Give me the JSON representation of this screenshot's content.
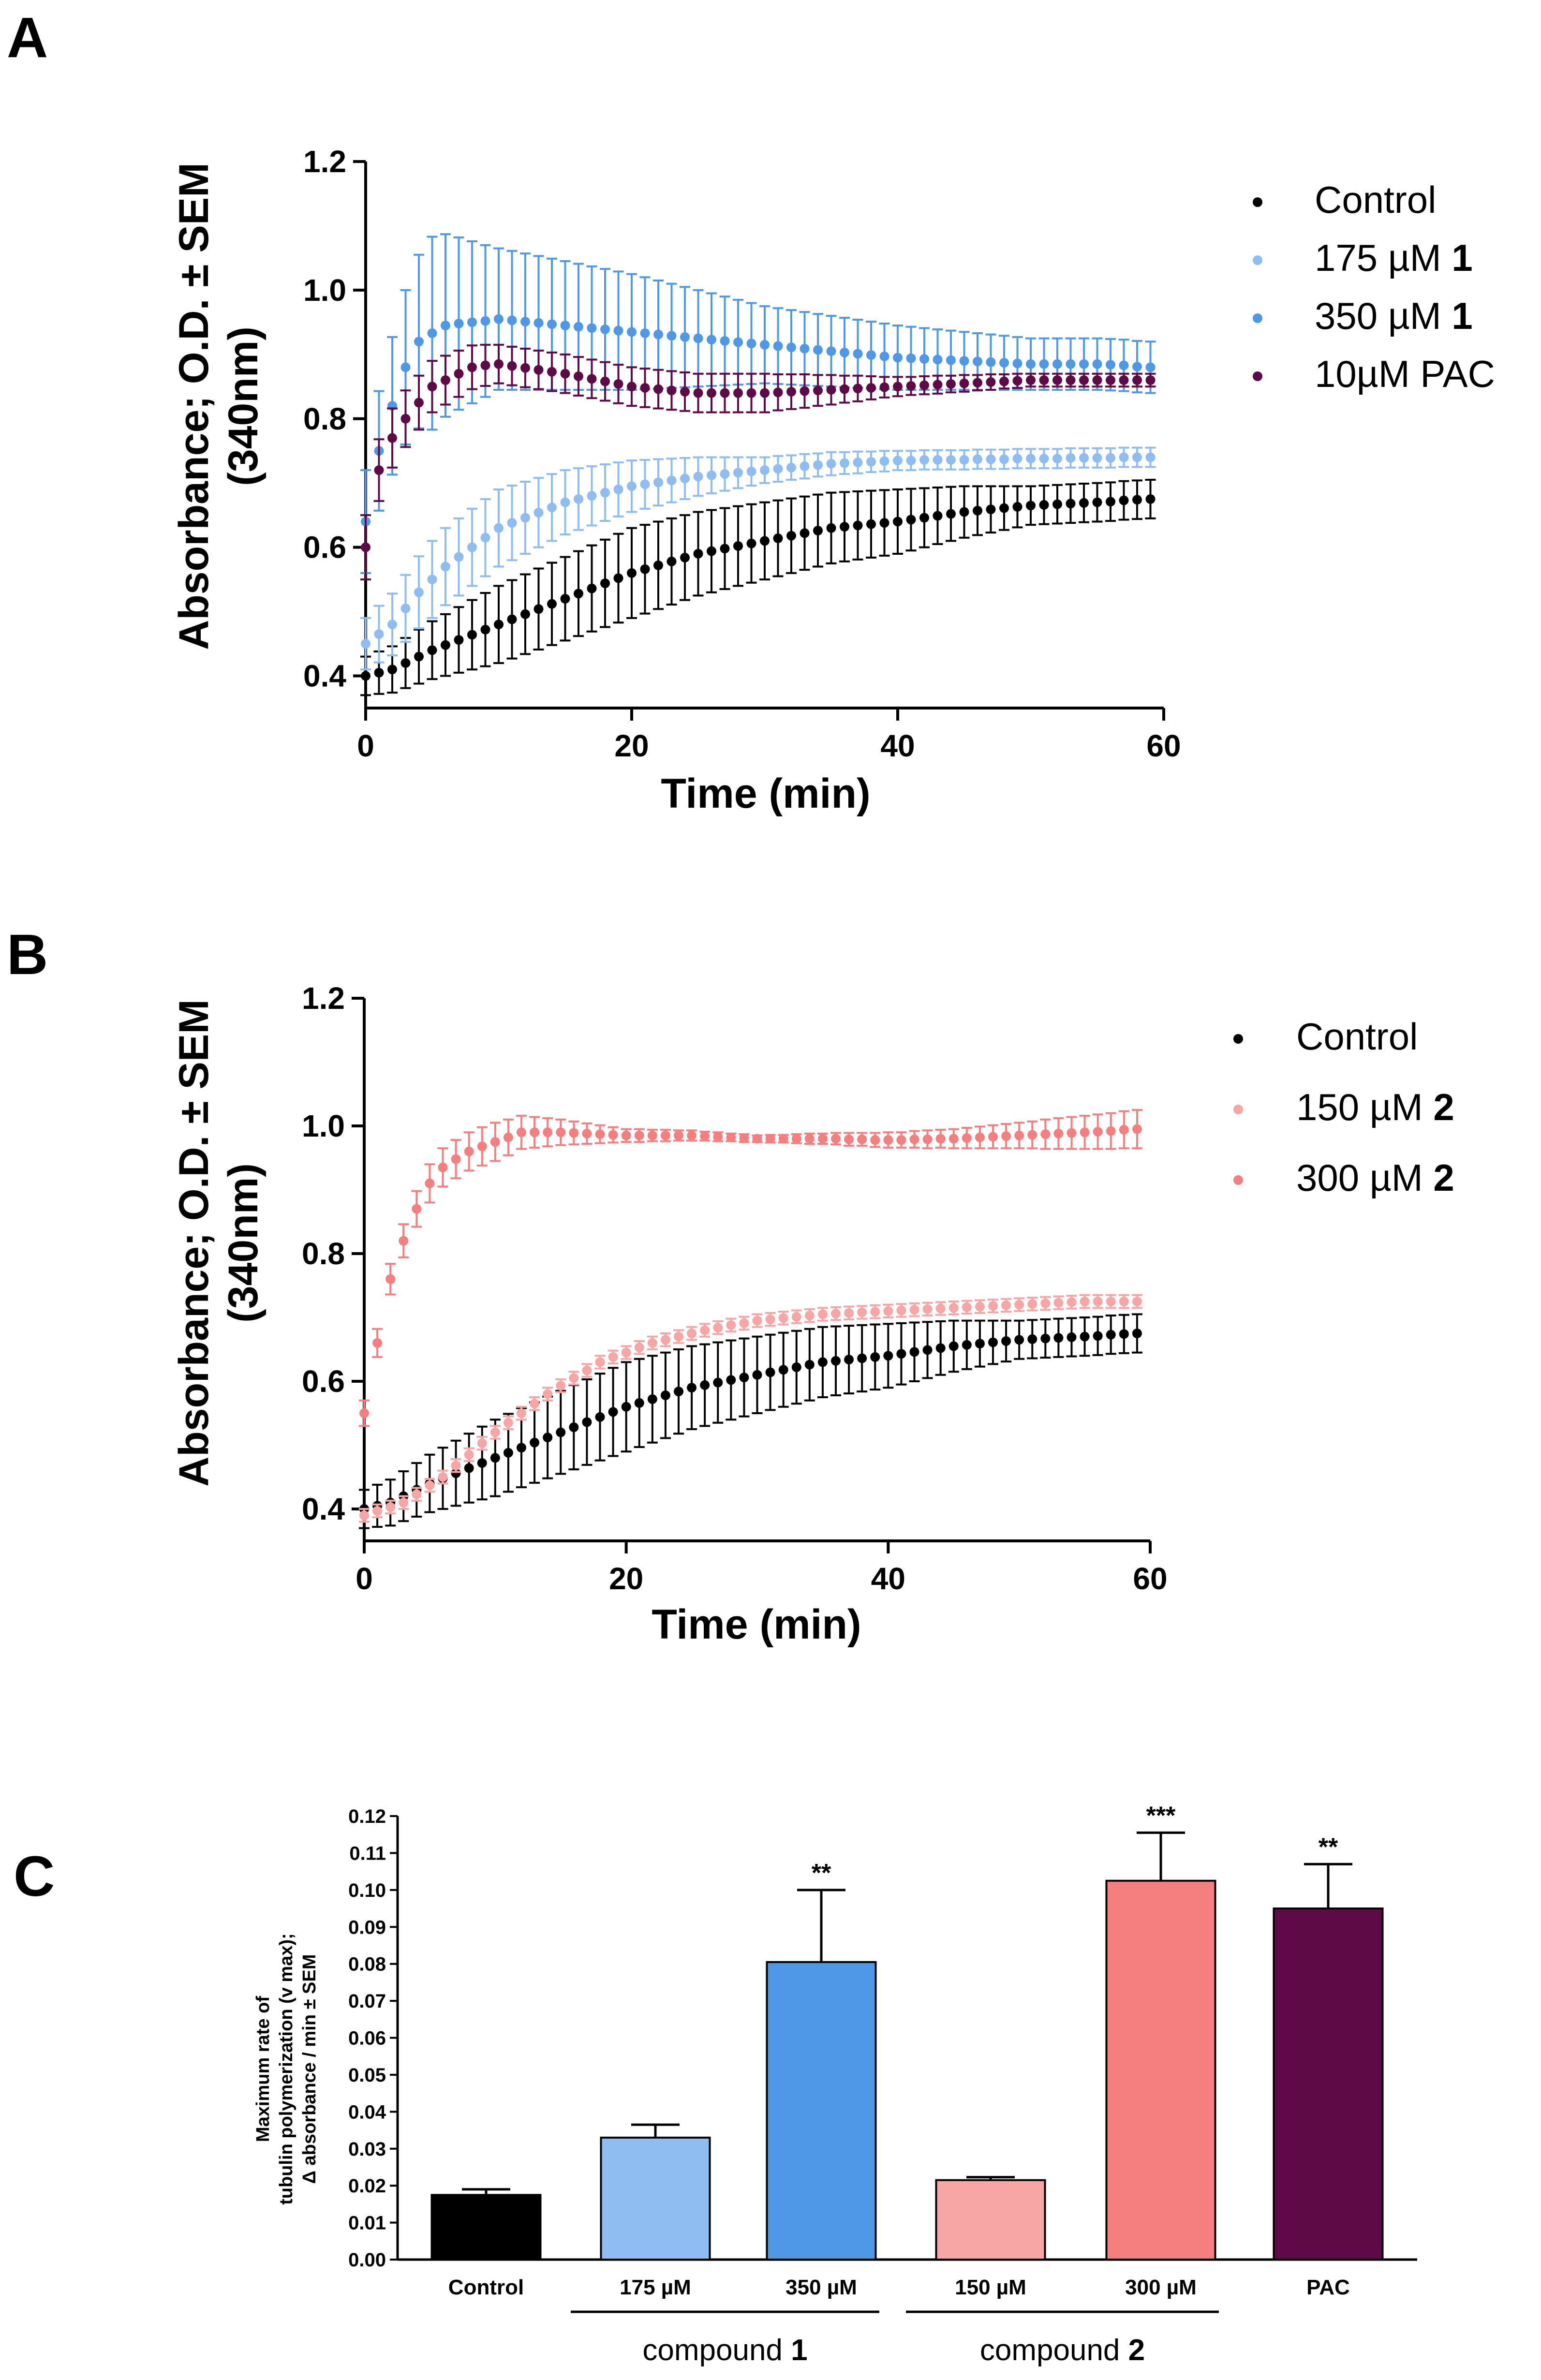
{
  "chart_data": [
    {
      "panel_label": "A",
      "type": "scatter",
      "title": "",
      "xlabel": "Time (min)",
      "ylabel_line1": "Absorbance; O.D. ± SEM",
      "ylabel_line2": "(340nm)",
      "xlim": [
        0,
        60
      ],
      "ylim": [
        0.35,
        1.2
      ],
      "xticks": [
        0,
        20,
        40,
        60
      ],
      "xtick_labels": [
        "0",
        "20",
        "40",
        "60"
      ],
      "yticks": [
        0.4,
        0.6,
        0.8,
        1.0,
        1.2
      ],
      "ytick_labels": [
        "0.4",
        "0.6",
        "0.8",
        "1.0",
        "1.2"
      ],
      "grid": false,
      "legend_position": "top-right",
      "time": {
        "start": 0,
        "end": 59,
        "step": 1
      },
      "series": [
        {
          "name": "Control",
          "legend_text": "Control",
          "legend_bold": "",
          "color": "#000000",
          "anchors": [
            [
              0,
              0.4
            ],
            [
              2,
              0.41
            ],
            [
              5,
              0.44
            ],
            [
              10,
              0.48
            ],
            [
              15,
              0.52
            ],
            [
              20,
              0.56
            ],
            [
              25,
              0.59
            ],
            [
              30,
              0.61
            ],
            [
              35,
              0.63
            ],
            [
              40,
              0.64
            ],
            [
              45,
              0.655
            ],
            [
              50,
              0.665
            ],
            [
              55,
              0.67
            ],
            [
              59,
              0.675
            ]
          ],
          "sem_anchors": [
            [
              0,
              0.03
            ],
            [
              10,
              0.06
            ],
            [
              20,
              0.07
            ],
            [
              30,
              0.06
            ],
            [
              40,
              0.05
            ],
            [
              50,
              0.03
            ],
            [
              59,
              0.03
            ]
          ]
        },
        {
          "name": "175 µM 1",
          "legend_text": "175 µM ",
          "legend_bold": "1",
          "color": "#8fbdf2",
          "anchors": [
            [
              0,
              0.45
            ],
            [
              2,
              0.48
            ],
            [
              4,
              0.53
            ],
            [
              6,
              0.57
            ],
            [
              10,
              0.63
            ],
            [
              15,
              0.67
            ],
            [
              20,
              0.695
            ],
            [
              25,
              0.71
            ],
            [
              30,
              0.72
            ],
            [
              35,
              0.73
            ],
            [
              40,
              0.735
            ],
            [
              50,
              0.738
            ],
            [
              59,
              0.74
            ]
          ],
          "sem_anchors": [
            [
              0,
              0.04
            ],
            [
              5,
              0.06
            ],
            [
              10,
              0.06
            ],
            [
              20,
              0.04
            ],
            [
              30,
              0.02
            ],
            [
              40,
              0.015
            ],
            [
              59,
              0.015
            ]
          ]
        },
        {
          "name": "350 µM 1",
          "legend_text": "350 µM ",
          "legend_bold": "1",
          "color": "#4f98e8",
          "anchors": [
            [
              0,
              0.64
            ],
            [
              1,
              0.75
            ],
            [
              2,
              0.82
            ],
            [
              3,
              0.88
            ],
            [
              4,
              0.92
            ],
            [
              6,
              0.945
            ],
            [
              10,
              0.955
            ],
            [
              15,
              0.945
            ],
            [
              20,
              0.935
            ],
            [
              25,
              0.925
            ],
            [
              30,
              0.915
            ],
            [
              35,
              0.905
            ],
            [
              40,
              0.895
            ],
            [
              45,
              0.89
            ],
            [
              50,
              0.885
            ],
            [
              55,
              0.885
            ],
            [
              59,
              0.88
            ]
          ],
          "sem_anchors": [
            [
              0,
              0.08
            ],
            [
              3,
              0.12
            ],
            [
              5,
              0.15
            ],
            [
              10,
              0.11
            ],
            [
              15,
              0.1
            ],
            [
              20,
              0.09
            ],
            [
              30,
              0.06
            ],
            [
              40,
              0.05
            ],
            [
              50,
              0.04
            ],
            [
              59,
              0.04
            ]
          ]
        },
        {
          "name": "10µM PAC",
          "legend_text": "10µM PAC",
          "legend_bold": "",
          "color": "#5d0a47",
          "anchors": [
            [
              0,
              0.6
            ],
            [
              1,
              0.72
            ],
            [
              2,
              0.77
            ],
            [
              3,
              0.8
            ],
            [
              5,
              0.85
            ],
            [
              8,
              0.88
            ],
            [
              10,
              0.885
            ],
            [
              15,
              0.87
            ],
            [
              20,
              0.85
            ],
            [
              25,
              0.84
            ],
            [
              30,
              0.84
            ],
            [
              35,
              0.845
            ],
            [
              40,
              0.85
            ],
            [
              45,
              0.855
            ],
            [
              50,
              0.86
            ],
            [
              55,
              0.86
            ],
            [
              59,
              0.86
            ]
          ],
          "sem_anchors": [
            [
              0,
              0.05
            ],
            [
              5,
              0.04
            ],
            [
              10,
              0.03
            ],
            [
              20,
              0.03
            ],
            [
              30,
              0.03
            ],
            [
              40,
              0.015
            ],
            [
              50,
              0.01
            ],
            [
              59,
              0.01
            ]
          ]
        }
      ]
    },
    {
      "panel_label": "B",
      "type": "scatter",
      "title": "",
      "xlabel": "Time (min)",
      "ylabel_line1": "Absorbance; O.D. ± SEM",
      "ylabel_line2": "(340nm)",
      "xlim": [
        0,
        60
      ],
      "ylim": [
        0.35,
        1.2
      ],
      "xticks": [
        0,
        20,
        40,
        60
      ],
      "xtick_labels": [
        "0",
        "20",
        "40",
        "60"
      ],
      "yticks": [
        0.4,
        0.6,
        0.8,
        1.0,
        1.2
      ],
      "ytick_labels": [
        "0.4",
        "0.6",
        "0.8",
        "1.0",
        "1.2"
      ],
      "grid": false,
      "legend_position": "top-right",
      "time": {
        "start": 0,
        "end": 59,
        "step": 1
      },
      "series": [
        {
          "name": "Control",
          "legend_text": "Control",
          "legend_bold": "",
          "color": "#000000",
          "anchors": [
            [
              0,
              0.4
            ],
            [
              2,
              0.41
            ],
            [
              5,
              0.44
            ],
            [
              10,
              0.48
            ],
            [
              15,
              0.52
            ],
            [
              20,
              0.56
            ],
            [
              25,
              0.59
            ],
            [
              30,
              0.61
            ],
            [
              35,
              0.63
            ],
            [
              40,
              0.64
            ],
            [
              45,
              0.655
            ],
            [
              50,
              0.665
            ],
            [
              55,
              0.67
            ],
            [
              59,
              0.675
            ]
          ],
          "sem_anchors": [
            [
              0,
              0.03
            ],
            [
              10,
              0.06
            ],
            [
              20,
              0.07
            ],
            [
              30,
              0.06
            ],
            [
              40,
              0.05
            ],
            [
              50,
              0.03
            ],
            [
              59,
              0.03
            ]
          ]
        },
        {
          "name": "150 µM 2",
          "legend_text": "150 µM ",
          "legend_bold": "2",
          "color": "#f7a5a5",
          "anchors": [
            [
              0,
              0.39
            ],
            [
              3,
              0.41
            ],
            [
              6,
              0.45
            ],
            [
              10,
              0.52
            ],
            [
              14,
              0.58
            ],
            [
              18,
              0.63
            ],
            [
              22,
              0.66
            ],
            [
              26,
              0.68
            ],
            [
              30,
              0.695
            ],
            [
              35,
              0.705
            ],
            [
              40,
              0.71
            ],
            [
              45,
              0.715
            ],
            [
              50,
              0.72
            ],
            [
              55,
              0.725
            ],
            [
              59,
              0.725
            ]
          ],
          "sem_anchors": [
            [
              0,
              0.01
            ],
            [
              59,
              0.01
            ]
          ]
        },
        {
          "name": "300 µM 2",
          "legend_text": "300 µM ",
          "legend_bold": "2",
          "color": "#f57f7f",
          "anchors": [
            [
              0,
              0.55
            ],
            [
              1,
              0.66
            ],
            [
              2,
              0.76
            ],
            [
              3,
              0.82
            ],
            [
              4,
              0.87
            ],
            [
              5,
              0.91
            ],
            [
              6,
              0.935
            ],
            [
              8,
              0.96
            ],
            [
              10,
              0.975
            ],
            [
              12,
              0.99
            ],
            [
              15,
              0.99
            ],
            [
              20,
              0.985
            ],
            [
              25,
              0.985
            ],
            [
              30,
              0.98
            ],
            [
              35,
              0.98
            ],
            [
              40,
              0.978
            ],
            [
              45,
              0.98
            ],
            [
              50,
              0.985
            ],
            [
              55,
              0.99
            ],
            [
              59,
              0.995
            ]
          ],
          "sem_anchors": [
            [
              0,
              0.02
            ],
            [
              5,
              0.03
            ],
            [
              10,
              0.03
            ],
            [
              20,
              0.01
            ],
            [
              30,
              0.005
            ],
            [
              45,
              0.015
            ],
            [
              59,
              0.03
            ]
          ]
        }
      ]
    },
    {
      "panel_label": "C",
      "type": "bar",
      "title": "",
      "ylabel_lines": [
        "Maximum rate of",
        "tubulin polymerization (v max);",
        "Δ absorbance / min ± SEM"
      ],
      "ylim": [
        0,
        0.12
      ],
      "yticks": [
        0,
        0.01,
        0.02,
        0.03,
        0.04,
        0.05,
        0.06,
        0.07,
        0.08,
        0.09,
        0.1,
        0.11,
        0.12
      ],
      "ytick_labels": [
        "0.00",
        "0.01",
        "0.02",
        "0.03",
        "0.04",
        "0.05",
        "0.06",
        "0.07",
        "0.08",
        "0.09",
        "0.10",
        "0.11",
        "0.12"
      ],
      "grid": false,
      "categories": [
        "Control",
        "175 µM",
        "350 µM",
        "150 µM",
        "300 µM",
        "PAC"
      ],
      "values": [
        0.0175,
        0.033,
        0.0805,
        0.0215,
        0.1025,
        0.095
      ],
      "errors": [
        0.0015,
        0.0035,
        0.0195,
        0.0008,
        0.013,
        0.012
      ],
      "colors": [
        "#000000",
        "#8fbdf2",
        "#4f98e8",
        "#f7a5a5",
        "#f57f7f",
        "#5d0a47"
      ],
      "significance": [
        "",
        "",
        "**",
        "",
        "***",
        "**"
      ],
      "groups": [
        {
          "label": "compound ",
          "label_bold": "1",
          "from": 1,
          "to": 2
        },
        {
          "label": "compound ",
          "label_bold": "2",
          "from": 3,
          "to": 4
        }
      ]
    }
  ]
}
